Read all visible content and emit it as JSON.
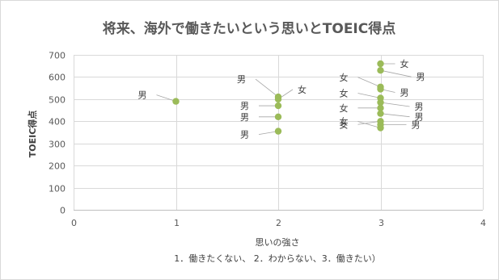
{
  "chart_data": {
    "type": "scatter",
    "title": "将来、海外で働きたいという思いとTOEIC得点",
    "xlabel": "思いの強さ",
    "ylabel": "TOEIC得点",
    "x_note": "1．働きたくない、 2．わからない、3．働きたい）",
    "xlim": [
      0,
      4
    ],
    "ylim": [
      0,
      700
    ],
    "x_ticks": [
      0,
      1,
      2,
      3,
      4
    ],
    "y_ticks": [
      0,
      100,
      200,
      300,
      400,
      500,
      600,
      700
    ],
    "grid": true,
    "marker_color": "#9bbb59",
    "points": [
      {
        "x": 1,
        "y": 490,
        "label": "男"
      },
      {
        "x": 2,
        "y": 510,
        "label": "男"
      },
      {
        "x": 2,
        "y": 500,
        "label": "女"
      },
      {
        "x": 2,
        "y": 470,
        "label": "男"
      },
      {
        "x": 2,
        "y": 420,
        "label": "男"
      },
      {
        "x": 2,
        "y": 355,
        "label": "男"
      },
      {
        "x": 3,
        "y": 660,
        "label": "女"
      },
      {
        "x": 3,
        "y": 630,
        "label": "男"
      },
      {
        "x": 3,
        "y": 555,
        "label": "女"
      },
      {
        "x": 3,
        "y": 545,
        "label": "男"
      },
      {
        "x": 3,
        "y": 505,
        "label": "女"
      },
      {
        "x": 3,
        "y": 485,
        "label": "男"
      },
      {
        "x": 3,
        "y": 460,
        "label": "女"
      },
      {
        "x": 3,
        "y": 435,
        "label": "男"
      },
      {
        "x": 3,
        "y": 400,
        "label": "女"
      },
      {
        "x": 3,
        "y": 385,
        "label": "男"
      },
      {
        "x": 3,
        "y": 370,
        "label": "女"
      }
    ]
  }
}
